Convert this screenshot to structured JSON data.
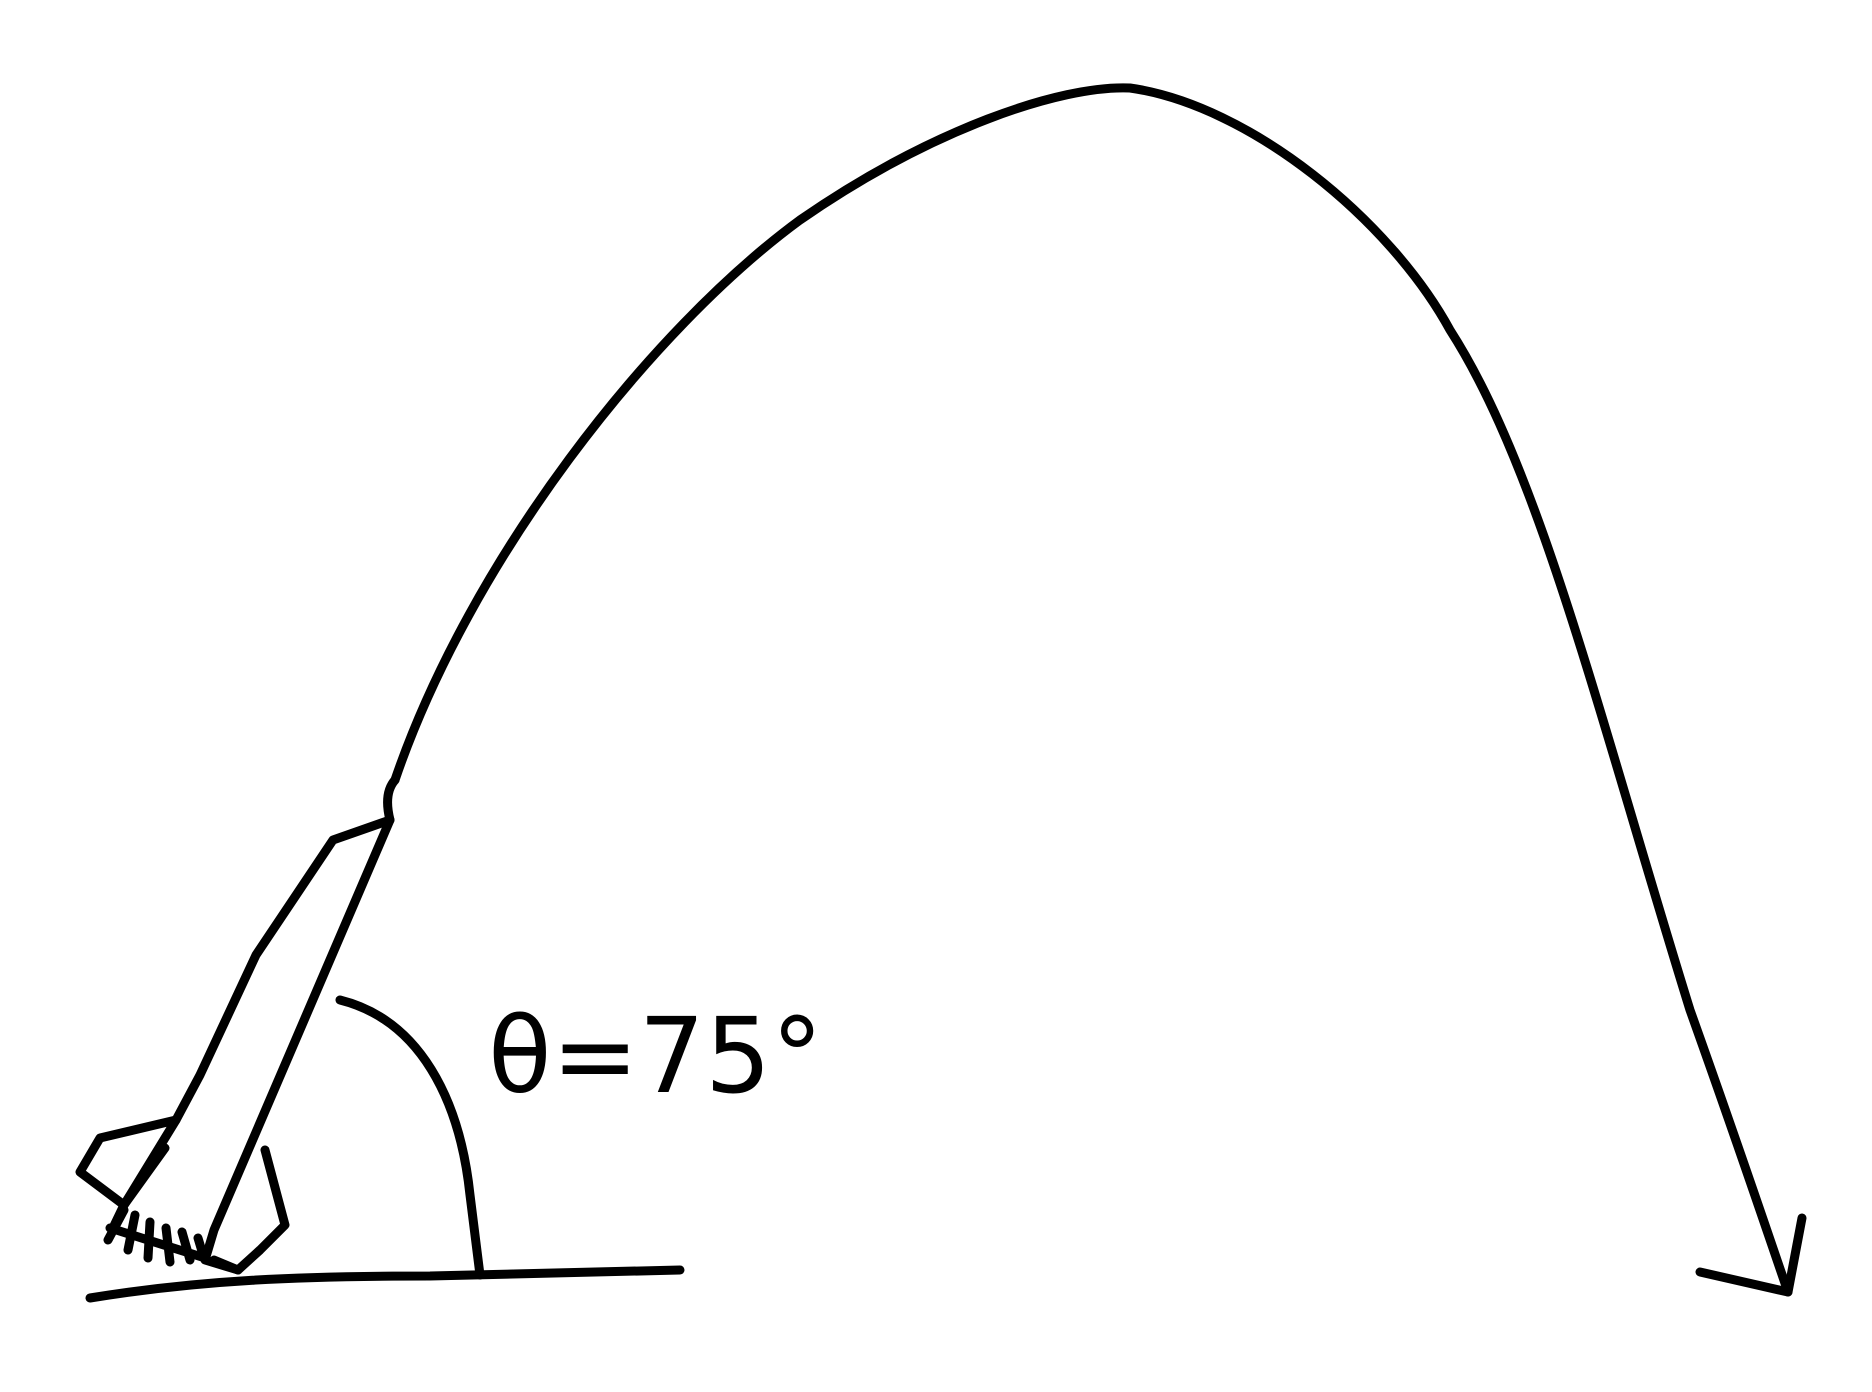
{
  "diagram": {
    "angle_label": "θ=75°",
    "colors": {
      "ink": "#000000",
      "background": "#ffffff"
    }
  }
}
